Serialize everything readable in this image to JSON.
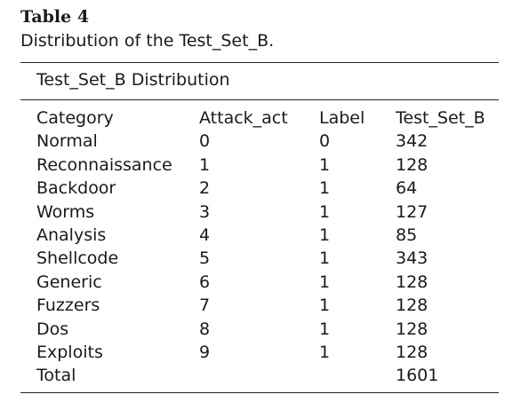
{
  "caption": {
    "label": "Table 4",
    "text": "Distribution of the Test_Set_B."
  },
  "table": {
    "heading": "Test_Set_B Distribution",
    "columns": [
      "Category",
      "Attack_act",
      "Label",
      "Test_Set_B"
    ],
    "rows": [
      [
        "Normal",
        "0",
        "0",
        "342"
      ],
      [
        "Reconnaissance",
        "1",
        "1",
        "128"
      ],
      [
        "Backdoor",
        "2",
        "1",
        "64"
      ],
      [
        "Worms",
        "3",
        "1",
        "127"
      ],
      [
        "Analysis",
        "4",
        "1",
        "85"
      ],
      [
        "Shellcode",
        "5",
        "1",
        "343"
      ],
      [
        "Generic",
        "6",
        "1",
        "128"
      ],
      [
        "Fuzzers",
        "7",
        "1",
        "128"
      ],
      [
        "Dos",
        "8",
        "1",
        "128"
      ],
      [
        "Exploits",
        "9",
        "1",
        "128"
      ],
      [
        "Total",
        "",
        "",
        "1601"
      ]
    ]
  }
}
